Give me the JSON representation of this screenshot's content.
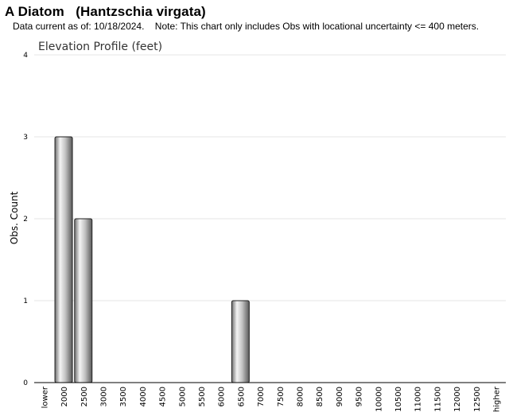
{
  "header": {
    "title": "A Diatom   (Hantzschia virgata)",
    "note": "Data current as of: 10/18/2024.    Note: This chart only includes Obs with locational uncertainty <= 400 meters."
  },
  "chart_data": {
    "type": "bar",
    "title": "Elevation Profile (feet)",
    "xlabel": "",
    "ylabel": "Obs. Count",
    "ylim": [
      0,
      4
    ],
    "yticks": [
      0,
      1,
      2,
      3,
      4
    ],
    "grid": true,
    "categories": [
      "lower",
      "2000",
      "2500",
      "3000",
      "3500",
      "4000",
      "4500",
      "5000",
      "5500",
      "6000",
      "6500",
      "7000",
      "7500",
      "8000",
      "8500",
      "9000",
      "9500",
      "10000",
      "10500",
      "11000",
      "11500",
      "12000",
      "12500",
      "higher"
    ],
    "values": [
      0,
      3,
      2,
      0,
      0,
      0,
      0,
      0,
      0,
      0,
      1,
      0,
      0,
      0,
      0,
      0,
      0,
      0,
      0,
      0,
      0,
      0,
      0,
      0
    ],
    "bar_color": "#a0a0a0"
  }
}
